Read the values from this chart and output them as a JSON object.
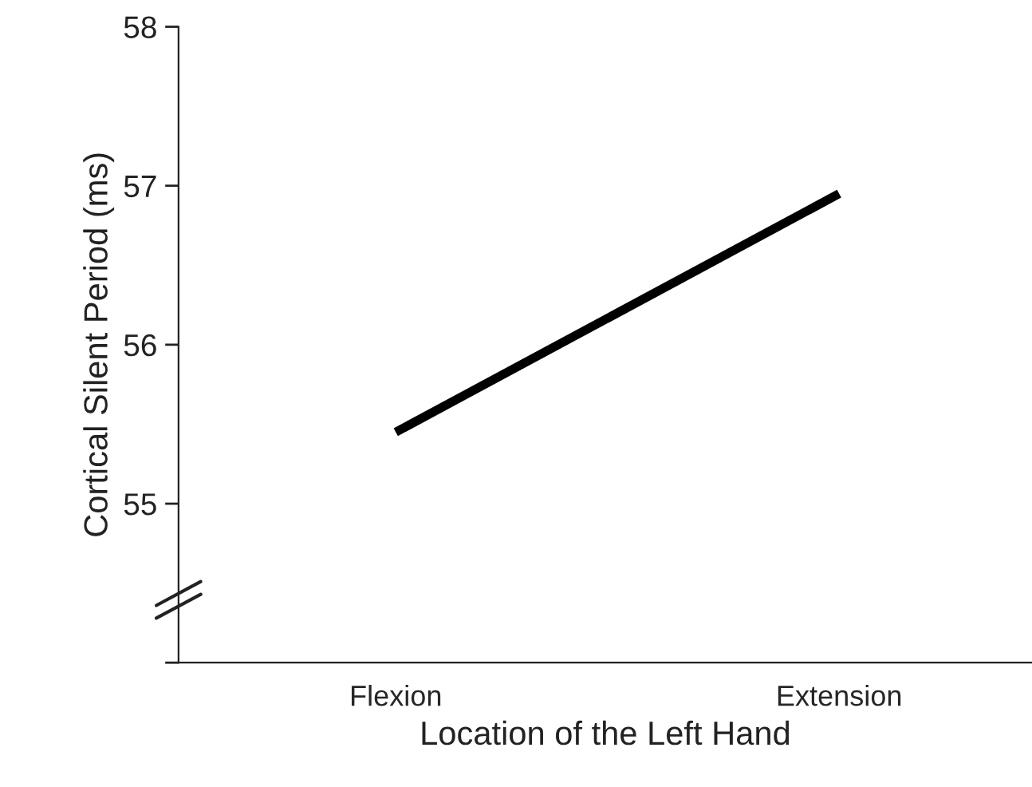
{
  "chart_data": {
    "type": "line",
    "xlabel": "Location of the Left Hand",
    "ylabel": "Cortical Silent Period (ms)",
    "categories": [
      "Flexion",
      "Extension"
    ],
    "series": [
      {
        "color": "#000000",
        "values": [
          55.45,
          56.95
        ]
      }
    ],
    "ylim": [
      54,
      58
    ],
    "yticks": [
      {
        "value": 54,
        "label": null
      },
      55,
      56,
      57,
      58
    ],
    "grid": false,
    "marker": "none",
    "line_style": "solid"
  }
}
